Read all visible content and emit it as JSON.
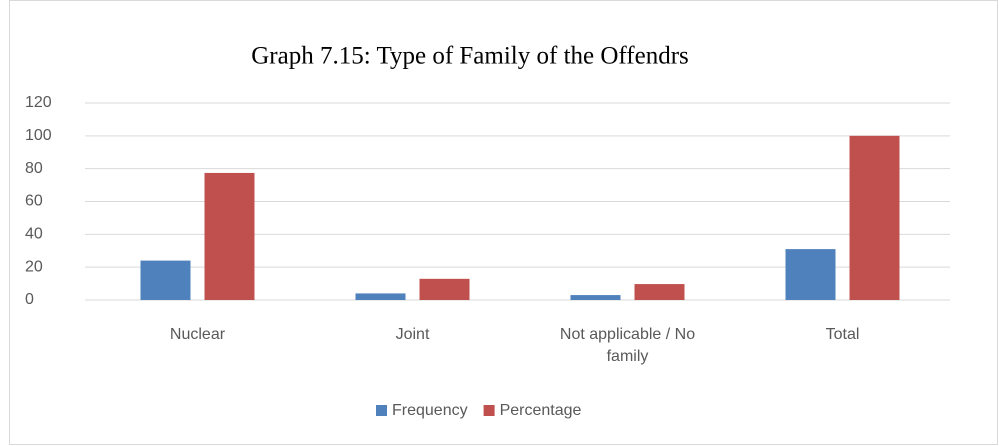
{
  "chart_data": {
    "type": "bar",
    "title": "Graph 7.15: Type of Family of the Offendrs",
    "categories": [
      "Nuclear",
      "Joint",
      "Not applicable / No family",
      "Total"
    ],
    "series": [
      {
        "name": "Frequency",
        "color": "#4f81bd",
        "values": [
          24,
          4,
          3,
          31
        ]
      },
      {
        "name": "Percentage",
        "color": "#c0504d",
        "values": [
          77.4,
          12.9,
          9.7,
          100
        ]
      }
    ],
    "ylim": [
      0,
      120
    ],
    "yticks": [
      0,
      20,
      40,
      60,
      80,
      100,
      120
    ],
    "grid": true,
    "legend": "bottom"
  }
}
